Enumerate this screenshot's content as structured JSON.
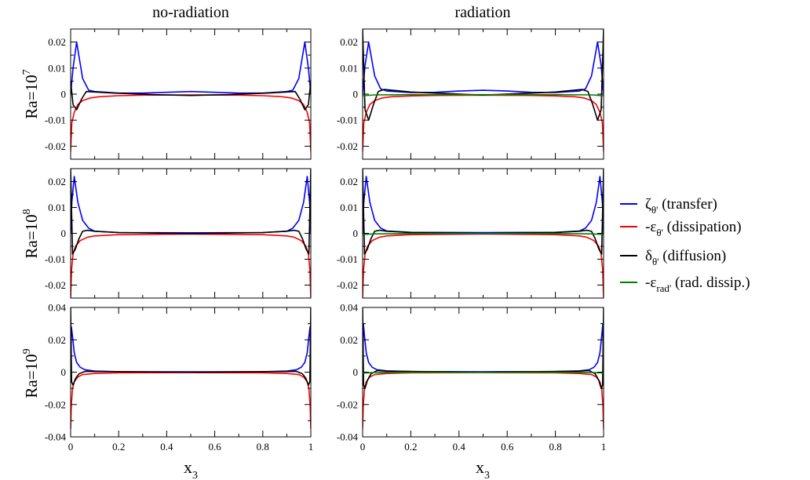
{
  "figure": {
    "column_titles": [
      "no-radiation",
      "radiation"
    ],
    "row_labels": [
      {
        "base": "Ra=10",
        "exp": "7"
      },
      {
        "base": "Ra=10",
        "exp": "8"
      },
      {
        "base": "Ra=10",
        "exp": "9"
      }
    ],
    "xlabel": {
      "base": "x",
      "sub": "3"
    },
    "legend": [
      {
        "key": "transfer",
        "sym": "ζ",
        "sub": "θ'",
        "desc": " (transfer)",
        "color": "#0000ff"
      },
      {
        "key": "dissipation",
        "sym": "-ε",
        "sub": "θ'",
        "desc": " (dissipation)",
        "color": "#ff0000"
      },
      {
        "key": "diffusion",
        "sym": "δ",
        "sub": "θ'",
        "desc": " (diffusion)",
        "color": "#000000"
      },
      {
        "key": "rad_dissip",
        "sym": "-ε",
        "sub": "rad'",
        "desc": " (rad. dissip.)",
        "color": "#008000"
      }
    ]
  },
  "chart_data": [
    {
      "type": "line",
      "panel": "Ra=10^7 no-radiation",
      "xlim": [
        0,
        1
      ],
      "ylim": [
        -0.025,
        0.025
      ],
      "xticks": [
        "0",
        "0.2",
        "0.4",
        "0.6",
        "0.8",
        "1"
      ],
      "xtick_labels_shown": false,
      "yticks": [
        -0.02,
        -0.01,
        0,
        0.01,
        0.02
      ],
      "ytick_labels": [
        "-0.02",
        "-0.01",
        "0",
        "0.01",
        "0.02"
      ],
      "series": [
        {
          "name": "ζθ' (transfer)",
          "color": "#0000ff",
          "x": [
            0,
            0.01,
            0.025,
            0.05,
            0.075,
            0.1,
            0.2,
            0.3,
            0.4,
            0.5,
            0.6,
            0.7,
            0.8,
            0.9,
            0.925,
            0.95,
            0.975,
            0.99,
            1
          ],
          "y": [
            0,
            0.01,
            0.02,
            0.006,
            0.0015,
            0.001,
            0.0004,
            0.0004,
            0.0007,
            0.001,
            0.0007,
            0.0004,
            0.0004,
            0.001,
            0.0015,
            0.006,
            0.02,
            0.01,
            0
          ]
        },
        {
          "name": "-εθ' (dissipation)",
          "color": "#ff0000",
          "x": [
            0,
            0.005,
            0.015,
            0.03,
            0.05,
            0.08,
            0.12,
            0.2,
            0.3,
            0.5,
            0.7,
            0.8,
            0.88,
            0.92,
            0.95,
            0.97,
            0.985,
            0.995,
            1
          ],
          "y": [
            -0.022,
            -0.011,
            -0.007,
            -0.004,
            -0.0025,
            -0.0015,
            -0.001,
            -0.0006,
            -0.0004,
            -0.0003,
            -0.0004,
            -0.0006,
            -0.001,
            -0.0015,
            -0.0025,
            -0.004,
            -0.007,
            -0.011,
            -0.022
          ]
        },
        {
          "name": "δθ' (diffusion)",
          "color": "#000000",
          "x": [
            0,
            0.01,
            0.025,
            0.045,
            0.065,
            0.1,
            0.2,
            0.35,
            0.5,
            0.65,
            0.8,
            0.9,
            0.935,
            0.955,
            0.975,
            0.99,
            1
          ],
          "y": [
            0.005,
            -0.004,
            -0.006,
            -0.002,
            0.001,
            0.0008,
            0.0003,
            -0.0002,
            -0.0005,
            -0.0002,
            0.0003,
            0.0008,
            0.001,
            -0.002,
            -0.006,
            -0.004,
            0.005
          ]
        }
      ]
    },
    {
      "type": "line",
      "panel": "Ra=10^7 radiation",
      "xlim": [
        0,
        1
      ],
      "ylim": [
        -0.025,
        0.025
      ],
      "xticks": [
        "0",
        "0.2",
        "0.4",
        "0.6",
        "0.8",
        "1"
      ],
      "xtick_labels_shown": false,
      "yticks": [
        -0.02,
        -0.01,
        0,
        0.01,
        0.02
      ],
      "ytick_labels": [
        "-0.02",
        "-0.01",
        "0",
        "0.01",
        "0.02"
      ],
      "series": [
        {
          "name": "ζθ' (transfer)",
          "color": "#0000ff",
          "x": [
            0,
            0.01,
            0.025,
            0.05,
            0.075,
            0.1,
            0.2,
            0.3,
            0.4,
            0.5,
            0.6,
            0.7,
            0.8,
            0.9,
            0.925,
            0.95,
            0.975,
            0.99,
            1
          ],
          "y": [
            0,
            0.011,
            0.02,
            0.007,
            0.002,
            0.0012,
            0.0006,
            0.0007,
            0.0012,
            0.0015,
            0.0012,
            0.0007,
            0.0006,
            0.0012,
            0.002,
            0.007,
            0.02,
            0.011,
            0
          ]
        },
        {
          "name": "-εθ' (dissipation)",
          "color": "#ff0000",
          "x": [
            0,
            0.005,
            0.015,
            0.03,
            0.05,
            0.08,
            0.12,
            0.2,
            0.3,
            0.5,
            0.7,
            0.8,
            0.88,
            0.92,
            0.95,
            0.97,
            0.985,
            0.995,
            1
          ],
          "y": [
            -0.022,
            -0.011,
            -0.007,
            -0.004,
            -0.0025,
            -0.0015,
            -0.001,
            -0.0007,
            -0.0005,
            -0.0004,
            -0.0005,
            -0.0007,
            -0.001,
            -0.0015,
            -0.0025,
            -0.004,
            -0.007,
            -0.011,
            -0.022
          ]
        },
        {
          "name": "δθ' (diffusion)",
          "color": "#000000",
          "x": [
            0,
            0.01,
            0.025,
            0.045,
            0.065,
            0.09,
            0.2,
            0.35,
            0.5,
            0.65,
            0.8,
            0.91,
            0.935,
            0.955,
            0.975,
            0.99,
            1
          ],
          "y": [
            0.025,
            -0.006,
            -0.01,
            -0.004,
            0.001,
            0.0018,
            0.0008,
            0.0002,
            -0.0004,
            0.0002,
            0.0008,
            0.0018,
            0.001,
            -0.004,
            -0.01,
            -0.006,
            0.025
          ]
        },
        {
          "name": "-εrad' (rad. dissip.)",
          "color": "#008000",
          "x": [
            0,
            0.05,
            0.2,
            0.5,
            0.8,
            0.95,
            1
          ],
          "y": [
            -0.0006,
            -0.0003,
            -0.0002,
            -0.0002,
            -0.0002,
            -0.0003,
            -0.0006
          ]
        }
      ]
    },
    {
      "type": "line",
      "panel": "Ra=10^8 no-radiation",
      "xlim": [
        0,
        1
      ],
      "ylim": [
        -0.025,
        0.025
      ],
      "xticks": [
        "0",
        "0.2",
        "0.4",
        "0.6",
        "0.8",
        "1"
      ],
      "xtick_labels_shown": false,
      "yticks": [
        -0.02,
        -0.01,
        0,
        0.01,
        0.02
      ],
      "ytick_labels": [
        "-0.02",
        "-0.01",
        "0",
        "0.01",
        "0.02"
      ],
      "series": [
        {
          "name": "ζθ' (transfer)",
          "color": "#0000ff",
          "x": [
            0,
            0.005,
            0.015,
            0.03,
            0.05,
            0.075,
            0.1,
            0.2,
            0.5,
            0.8,
            0.9,
            0.925,
            0.95,
            0.97,
            0.985,
            0.995,
            1
          ],
          "y": [
            0,
            0.012,
            0.022,
            0.012,
            0.005,
            0.002,
            0.0008,
            0.0003,
            0.0002,
            0.0003,
            0.0008,
            0.002,
            0.005,
            0.012,
            0.022,
            0.012,
            0
          ]
        },
        {
          "name": "-εθ' (dissipation)",
          "color": "#ff0000",
          "x": [
            0,
            0.004,
            0.01,
            0.02,
            0.04,
            0.07,
            0.1,
            0.2,
            0.5,
            0.8,
            0.9,
            0.93,
            0.96,
            0.98,
            0.99,
            0.996,
            1
          ],
          "y": [
            -0.025,
            -0.014,
            -0.008,
            -0.005,
            -0.0028,
            -0.0015,
            -0.001,
            -0.0005,
            -0.0003,
            -0.0005,
            -0.001,
            -0.0015,
            -0.0028,
            -0.005,
            -0.008,
            -0.014,
            -0.025
          ]
        },
        {
          "name": "δθ' (diffusion)",
          "color": "#000000",
          "x": [
            0,
            0.008,
            0.02,
            0.035,
            0.05,
            0.07,
            0.1,
            0.2,
            0.5,
            0.8,
            0.9,
            0.93,
            0.95,
            0.965,
            0.98,
            0.992,
            1
          ],
          "y": [
            0.025,
            -0.008,
            -0.006,
            -0.002,
            0.0008,
            0.0012,
            0.0008,
            0.0003,
            -0.0001,
            0.0003,
            0.0008,
            0.0012,
            0.0008,
            -0.002,
            -0.006,
            -0.008,
            0.025
          ]
        }
      ]
    },
    {
      "type": "line",
      "panel": "Ra=10^8 radiation",
      "xlim": [
        0,
        1
      ],
      "ylim": [
        -0.025,
        0.025
      ],
      "xticks": [
        "0",
        "0.2",
        "0.4",
        "0.6",
        "0.8",
        "1"
      ],
      "xtick_labels_shown": false,
      "yticks": [
        -0.02,
        -0.01,
        0,
        0.01,
        0.02
      ],
      "ytick_labels": [
        "-0.02",
        "-0.01",
        "0",
        "0.01",
        "0.02"
      ],
      "series": [
        {
          "name": "ζθ' (transfer)",
          "color": "#0000ff",
          "x": [
            0,
            0.005,
            0.015,
            0.03,
            0.05,
            0.075,
            0.1,
            0.2,
            0.5,
            0.8,
            0.9,
            0.925,
            0.95,
            0.97,
            0.985,
            0.995,
            1
          ],
          "y": [
            0,
            0.012,
            0.022,
            0.012,
            0.005,
            0.002,
            0.0009,
            0.0004,
            0.0003,
            0.0004,
            0.0009,
            0.002,
            0.005,
            0.012,
            0.022,
            0.012,
            0
          ]
        },
        {
          "name": "-εθ' (dissipation)",
          "color": "#ff0000",
          "x": [
            0,
            0.004,
            0.01,
            0.02,
            0.04,
            0.07,
            0.1,
            0.2,
            0.5,
            0.8,
            0.9,
            0.93,
            0.96,
            0.98,
            0.99,
            0.996,
            1
          ],
          "y": [
            -0.025,
            -0.014,
            -0.008,
            -0.005,
            -0.0028,
            -0.0015,
            -0.001,
            -0.0005,
            -0.0003,
            -0.0005,
            -0.001,
            -0.0015,
            -0.0028,
            -0.005,
            -0.008,
            -0.014,
            -0.025
          ]
        },
        {
          "name": "δθ' (diffusion)",
          "color": "#000000",
          "x": [
            0,
            0.008,
            0.02,
            0.035,
            0.05,
            0.07,
            0.1,
            0.2,
            0.5,
            0.8,
            0.9,
            0.93,
            0.95,
            0.965,
            0.98,
            0.992,
            1
          ],
          "y": [
            0.025,
            -0.008,
            -0.006,
            -0.002,
            0.0008,
            0.0012,
            0.0008,
            0.0003,
            -0.0001,
            0.0003,
            0.0008,
            0.0012,
            0.0008,
            -0.002,
            -0.006,
            -0.008,
            0.025
          ]
        },
        {
          "name": "-εrad' (rad. dissip.)",
          "color": "#008000",
          "x": [
            0,
            0.05,
            0.2,
            0.5,
            0.8,
            0.95,
            1
          ],
          "y": [
            -0.0004,
            -0.0002,
            -0.0001,
            -0.0001,
            -0.0001,
            -0.0002,
            -0.0004
          ]
        }
      ]
    },
    {
      "type": "line",
      "panel": "Ra=10^9 no-radiation",
      "xlim": [
        0,
        1
      ],
      "ylim": [
        -0.04,
        0.04
      ],
      "xticks": [
        "0",
        "0.2",
        "0.4",
        "0.6",
        "0.8",
        "1"
      ],
      "xtick_labels_shown": true,
      "yticks": [
        -0.04,
        -0.02,
        0,
        0.02,
        0.04
      ],
      "ytick_labels": [
        "-0.04",
        "-0.02",
        "0",
        "0.02",
        "0.04"
      ],
      "series": [
        {
          "name": "ζθ' (transfer)",
          "color": "#0000ff",
          "x": [
            0,
            0.003,
            0.008,
            0.015,
            0.025,
            0.04,
            0.06,
            0.1,
            0.2,
            0.5,
            0.8,
            0.9,
            0.94,
            0.96,
            0.975,
            0.985,
            0.992,
            0.997,
            1
          ],
          "y": [
            0,
            0.028,
            0.022,
            0.012,
            0.006,
            0.003,
            0.0015,
            0.0007,
            0.0003,
            0.0002,
            0.0003,
            0.0007,
            0.0015,
            0.003,
            0.006,
            0.012,
            0.022,
            0.028,
            0
          ]
        },
        {
          "name": "-εθ' (dissipation)",
          "color": "#ff0000",
          "x": [
            0,
            0.003,
            0.008,
            0.015,
            0.03,
            0.05,
            0.1,
            0.2,
            0.5,
            0.8,
            0.9,
            0.95,
            0.97,
            0.985,
            0.992,
            0.997,
            1
          ],
          "y": [
            -0.035,
            -0.02,
            -0.01,
            -0.006,
            -0.003,
            -0.0015,
            -0.0008,
            -0.0004,
            -0.0003,
            -0.0004,
            -0.0008,
            -0.0015,
            -0.003,
            -0.006,
            -0.01,
            -0.02,
            -0.035
          ]
        },
        {
          "name": "δθ' (diffusion)",
          "color": "#000000",
          "x": [
            0,
            0.004,
            0.01,
            0.02,
            0.035,
            0.06,
            0.1,
            0.5,
            0.9,
            0.94,
            0.965,
            0.98,
            0.99,
            0.996,
            1
          ],
          "y": [
            0.04,
            -0.006,
            -0.008,
            -0.004,
            -0.001,
            0.0005,
            0.0004,
            0,
            0.0004,
            0.0005,
            -0.001,
            -0.004,
            -0.008,
            -0.006,
            0.04
          ]
        }
      ]
    },
    {
      "type": "line",
      "panel": "Ra=10^9 radiation",
      "xlim": [
        0,
        1
      ],
      "ylim": [
        -0.04,
        0.04
      ],
      "xticks": [
        "0",
        "0.2",
        "0.4",
        "0.6",
        "0.8",
        "1"
      ],
      "xtick_labels_shown": true,
      "yticks": [
        -0.04,
        -0.02,
        0,
        0.02,
        0.04
      ],
      "ytick_labels": [
        "-0.04",
        "-0.02",
        "0",
        "0.02",
        "0.04"
      ],
      "series": [
        {
          "name": "ζθ' (transfer)",
          "color": "#0000ff",
          "x": [
            0,
            0.003,
            0.008,
            0.015,
            0.025,
            0.04,
            0.06,
            0.1,
            0.2,
            0.5,
            0.8,
            0.9,
            0.94,
            0.96,
            0.975,
            0.985,
            0.992,
            0.997,
            1
          ],
          "y": [
            0,
            0.03,
            0.022,
            0.012,
            0.006,
            0.003,
            0.0015,
            0.0008,
            0.0004,
            0.0003,
            0.0004,
            0.0008,
            0.0015,
            0.003,
            0.006,
            0.012,
            0.022,
            0.03,
            0
          ]
        },
        {
          "name": "-εθ' (dissipation)",
          "color": "#ff0000",
          "x": [
            0,
            0.003,
            0.008,
            0.015,
            0.03,
            0.05,
            0.1,
            0.2,
            0.5,
            0.8,
            0.9,
            0.95,
            0.97,
            0.985,
            0.992,
            0.997,
            1
          ],
          "y": [
            -0.035,
            -0.02,
            -0.01,
            -0.006,
            -0.003,
            -0.0015,
            -0.0008,
            -0.0004,
            -0.0003,
            -0.0004,
            -0.0008,
            -0.0015,
            -0.003,
            -0.006,
            -0.01,
            -0.02,
            -0.035
          ]
        },
        {
          "name": "δθ' (diffusion)",
          "color": "#000000",
          "x": [
            0,
            0.004,
            0.01,
            0.02,
            0.035,
            0.06,
            0.1,
            0.5,
            0.9,
            0.94,
            0.965,
            0.98,
            0.99,
            0.996,
            1
          ],
          "y": [
            0.04,
            -0.008,
            -0.01,
            -0.005,
            -0.001,
            0.001,
            0.0006,
            0,
            0.0006,
            0.001,
            -0.001,
            -0.005,
            -0.01,
            -0.008,
            0.04
          ]
        },
        {
          "name": "-εrad' (rad. dissip.)",
          "color": "#008000",
          "x": [
            0,
            0.05,
            0.2,
            0.5,
            0.8,
            0.95,
            1
          ],
          "y": [
            -0.0005,
            -0.0002,
            -0.0001,
            -0.0001,
            -0.0001,
            -0.0002,
            -0.0005
          ]
        }
      ]
    }
  ]
}
